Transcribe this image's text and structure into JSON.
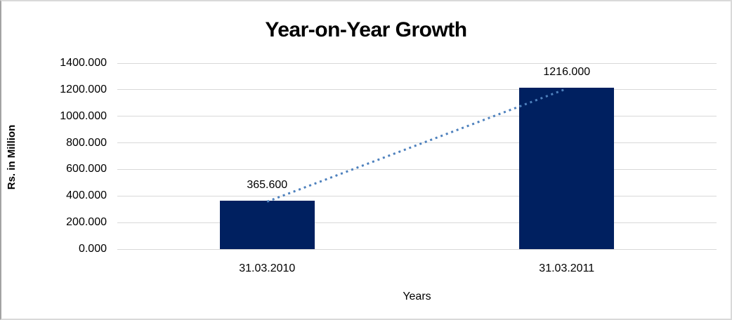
{
  "chart_data": {
    "type": "bar",
    "title": "Year-on-Year Growth",
    "xlabel": "Years",
    "ylabel": "Rs. in Million",
    "categories": [
      "31.03.2010",
      "31.03.2011"
    ],
    "values": [
      365.6,
      1216.0
    ],
    "data_labels": [
      "365.600",
      "1216.000"
    ],
    "ylim": [
      0,
      1400
    ],
    "ytick_step": 200,
    "ytick_labels": [
      "1400.000",
      "1200.000",
      "1000.000",
      "800.000",
      "600.000",
      "400.000",
      "200.000",
      "0.000"
    ],
    "grid": true,
    "legend_position": "none",
    "trendline": {
      "type": "linear",
      "style": "dotted"
    },
    "colors": {
      "bar": "#002060",
      "gridline": "#d9d9d9",
      "trendline": "#4e81bd",
      "text": "#000000",
      "frame_border": "#d9d9d9"
    }
  }
}
